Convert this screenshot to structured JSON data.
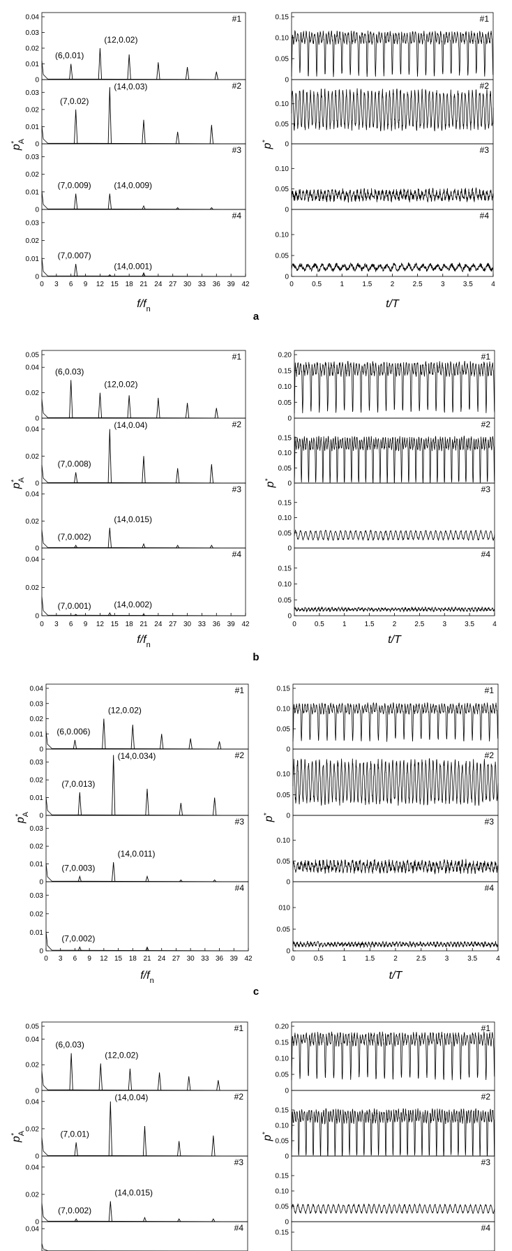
{
  "figure": {
    "panel_letters": [
      "a",
      "b",
      "c"
    ],
    "freq_xlabel": {
      "main": "f/f",
      "sub": "n"
    },
    "time_xlabel": "t/T",
    "freq_ylabel": {
      "main": "p",
      "sup": "*",
      "sub": "A"
    },
    "time_ylabel": {
      "main": "p",
      "sup": "*"
    }
  },
  "chart_data": [
    {
      "type": "line",
      "panel": "a",
      "side": "spectrum",
      "x_ticks": [
        "0",
        "3",
        "6",
        "9",
        "12",
        "15",
        "18",
        "21",
        "24",
        "27",
        "30",
        "33",
        "36",
        "39",
        "42"
      ],
      "xlim": [
        0,
        42
      ],
      "subplots": [
        {
          "tag": "#1",
          "ylim": [
            0,
            0.04
          ],
          "y_ticks": [
            "0",
            "0.01",
            "0.02",
            "0.03",
            "0.04"
          ],
          "peaks": [
            {
              "f": 6,
              "a": 0.01
            },
            {
              "f": 12,
              "a": 0.02
            },
            {
              "f": 18,
              "a": 0.016
            },
            {
              "f": 24,
              "a": 0.011
            },
            {
              "f": 30,
              "a": 0.008
            },
            {
              "f": 36,
              "a": 0.005
            }
          ],
          "annotations": [
            "(6,0.01)",
            "(12,0.02)"
          ]
        },
        {
          "tag": "#2",
          "ylim": [
            0,
            0.035
          ],
          "y_ticks": [
            "0",
            "0.01",
            "0.02",
            "0.03"
          ],
          "peaks": [
            {
              "f": 7,
              "a": 0.02
            },
            {
              "f": 14,
              "a": 0.033
            },
            {
              "f": 21,
              "a": 0.014
            },
            {
              "f": 28,
              "a": 0.007
            },
            {
              "f": 35,
              "a": 0.011
            }
          ],
          "annotations": [
            "(7,0.02)",
            "(14,0.03)"
          ]
        },
        {
          "tag": "#3",
          "ylim": [
            0,
            0.035
          ],
          "y_ticks": [
            "0",
            "0.01",
            "0.02",
            "0.03"
          ],
          "peaks": [
            {
              "f": 7,
              "a": 0.009
            },
            {
              "f": 14,
              "a": 0.009
            },
            {
              "f": 21,
              "a": 0.002
            },
            {
              "f": 28,
              "a": 0.001
            },
            {
              "f": 35,
              "a": 0.001
            }
          ],
          "annotations": [
            "(7,0.009)",
            "(14,0.009)"
          ]
        },
        {
          "tag": "#4",
          "ylim": [
            0,
            0.035
          ],
          "y_ticks": [
            "0",
            "0.01",
            "0.02",
            "0.03"
          ],
          "peaks": [
            {
              "f": 7,
              "a": 0.007
            },
            {
              "f": 14,
              "a": 0.001
            },
            {
              "f": 21,
              "a": 0.002
            }
          ],
          "annotations": [
            "(7,0.007)",
            "(14,0.001)"
          ]
        }
      ]
    },
    {
      "type": "line",
      "panel": "a",
      "side": "time",
      "x_ticks": [
        "0",
        "0.5",
        "1",
        "1.5",
        "2",
        "2.5",
        "3",
        "3.5",
        "4"
      ],
      "xlim": [
        0,
        4
      ],
      "subplots": [
        {
          "tag": "#1",
          "ylim": [
            0,
            0.15
          ],
          "y_ticks": [
            "0",
            "0.05",
            "0.10",
            "0.15"
          ],
          "signal": {
            "mean": 0.1,
            "amp": 0.04,
            "dips": 24,
            "kind": "dip"
          }
        },
        {
          "tag": "#2",
          "ylim": [
            0,
            0.15
          ],
          "y_ticks": [
            "0",
            "0.05",
            "0.10"
          ],
          "signal": {
            "mean": 0.085,
            "amp": 0.045,
            "dips": 56,
            "kind": "osc"
          }
        },
        {
          "tag": "#3",
          "ylim": [
            0,
            0.15
          ],
          "y_ticks": [
            "0",
            "0.05",
            "0.10"
          ],
          "signal": {
            "mean": 0.035,
            "amp": 0.012,
            "dips": 56,
            "kind": "noise"
          }
        },
        {
          "tag": "#4",
          "ylim": [
            0,
            0.15
          ],
          "y_ticks": [
            "0",
            "0.05",
            "0.10"
          ],
          "signal": {
            "mean": 0.022,
            "amp": 0.007,
            "dips": 28,
            "kind": "noise"
          }
        }
      ]
    },
    {
      "type": "line",
      "panel": "b",
      "side": "spectrum",
      "x_ticks": [
        "0",
        "3",
        "6",
        "9",
        "12",
        "15",
        "18",
        "21",
        "24",
        "27",
        "30",
        "33",
        "36",
        "39",
        "42"
      ],
      "xlim": [
        0,
        42
      ],
      "subplots": [
        {
          "tag": "#1",
          "ylim": [
            0,
            0.05
          ],
          "y_ticks": [
            "0",
            "0.02",
            "0.04",
            "0.05"
          ],
          "peaks": [
            {
              "f": 6,
              "a": 0.03
            },
            {
              "f": 12,
              "a": 0.02
            },
            {
              "f": 18,
              "a": 0.018
            },
            {
              "f": 24,
              "a": 0.016
            },
            {
              "f": 30,
              "a": 0.012
            },
            {
              "f": 36,
              "a": 0.008
            }
          ],
          "annotations": [
            "(6,0.03)",
            "(12,0.02)"
          ]
        },
        {
          "tag": "#2",
          "ylim": [
            0,
            0.045
          ],
          "y_ticks": [
            "0",
            "0.02",
            "0.04"
          ],
          "peaks": [
            {
              "f": 7,
              "a": 0.008
            },
            {
              "f": 14,
              "a": 0.04
            },
            {
              "f": 21,
              "a": 0.02
            },
            {
              "f": 28,
              "a": 0.011
            },
            {
              "f": 35,
              "a": 0.014
            }
          ],
          "annotations": [
            "(7,0.008)",
            "(14,0.04)"
          ]
        },
        {
          "tag": "#3",
          "ylim": [
            0,
            0.045
          ],
          "y_ticks": [
            "0",
            "0.02",
            "0.04"
          ],
          "peaks": [
            {
              "f": 7,
              "a": 0.002
            },
            {
              "f": 14,
              "a": 0.015
            },
            {
              "f": 21,
              "a": 0.003
            },
            {
              "f": 28,
              "a": 0.002
            },
            {
              "f": 35,
              "a": 0.002
            }
          ],
          "annotations": [
            "(7,0.002)",
            "(14,0.015)"
          ]
        },
        {
          "tag": "#4",
          "ylim": [
            0,
            0.045
          ],
          "y_ticks": [
            "0",
            "0.02",
            "0.04"
          ],
          "peaks": [
            {
              "f": 7,
              "a": 0.001
            },
            {
              "f": 14,
              "a": 0.002
            },
            {
              "f": 21,
              "a": 0.001
            }
          ],
          "annotations": [
            "(7,0.001)",
            "(14,0.002)"
          ]
        }
      ]
    },
    {
      "type": "line",
      "panel": "b",
      "side": "time",
      "x_ticks": [
        "0",
        "0.5",
        "1",
        "1.5",
        "2",
        "2.5",
        "3",
        "3.5",
        "4"
      ],
      "xlim": [
        0,
        4
      ],
      "subplots": [
        {
          "tag": "#1",
          "ylim": [
            0,
            0.2
          ],
          "y_ticks": [
            "0",
            "0.05",
            "0.10",
            "0.15",
            "0.20"
          ],
          "signal": {
            "mean": 0.155,
            "amp": 0.06,
            "dips": 24,
            "kind": "dip"
          }
        },
        {
          "tag": "#2",
          "ylim": [
            0,
            0.2
          ],
          "y_ticks": [
            "0",
            "0.05",
            "0.10",
            "0.15"
          ],
          "signal": {
            "mean": 0.13,
            "amp": 0.06,
            "dips": 28,
            "kind": "dip"
          }
        },
        {
          "tag": "#3",
          "ylim": [
            0,
            0.2
          ],
          "y_ticks": [
            "0",
            "0.05",
            "0.10",
            "0.15"
          ],
          "signal": {
            "mean": 0.042,
            "amp": 0.014,
            "dips": 40,
            "kind": "osc"
          }
        },
        {
          "tag": "#4",
          "ylim": [
            0,
            0.2
          ],
          "y_ticks": [
            "0",
            "0.05",
            "0.10",
            "0.15"
          ],
          "signal": {
            "mean": 0.02,
            "amp": 0.005,
            "dips": 60,
            "kind": "noise"
          }
        }
      ]
    },
    {
      "type": "line",
      "panel": "c",
      "side": "spectrum",
      "x_ticks": [
        "0",
        "3",
        "6",
        "9",
        "12",
        "15",
        "18",
        "21",
        "24",
        "27",
        "30",
        "33",
        "36",
        "39",
        "42"
      ],
      "xlim": [
        0,
        42
      ],
      "subplots": [
        {
          "tag": "#1",
          "ylim": [
            0,
            0.04
          ],
          "y_ticks": [
            "0",
            "0.01",
            "0.02",
            "0.03",
            "0.04"
          ],
          "peaks": [
            {
              "f": 6,
              "a": 0.006
            },
            {
              "f": 12,
              "a": 0.02
            },
            {
              "f": 18,
              "a": 0.016
            },
            {
              "f": 24,
              "a": 0.01
            },
            {
              "f": 30,
              "a": 0.007
            },
            {
              "f": 36,
              "a": 0.005
            }
          ],
          "annotations": [
            "(6,0.006)",
            "(12,0.02)"
          ]
        },
        {
          "tag": "#2",
          "ylim": [
            0,
            0.035
          ],
          "y_ticks": [
            "0",
            "0.01",
            "0.02",
            "0.03"
          ],
          "peaks": [
            {
              "f": 7,
              "a": 0.013
            },
            {
              "f": 14,
              "a": 0.034
            },
            {
              "f": 21,
              "a": 0.015
            },
            {
              "f": 28,
              "a": 0.007
            },
            {
              "f": 35,
              "a": 0.01
            }
          ],
          "annotations": [
            "(7,0.013)",
            "(14,0.034)"
          ]
        },
        {
          "tag": "#3",
          "ylim": [
            0,
            0.035
          ],
          "y_ticks": [
            "0",
            "0.01",
            "0.02",
            "0.03"
          ],
          "peaks": [
            {
              "f": 7,
              "a": 0.003
            },
            {
              "f": 14,
              "a": 0.011
            },
            {
              "f": 21,
              "a": 0.003
            },
            {
              "f": 28,
              "a": 0.001
            },
            {
              "f": 35,
              "a": 0.001
            }
          ],
          "annotations": [
            "(7,0.003)",
            "(14,0.011)"
          ]
        },
        {
          "tag": "#4",
          "ylim": [
            0,
            0.035
          ],
          "y_ticks": [
            "0",
            "0.01",
            "0.02",
            "0.03"
          ],
          "peaks": [
            {
              "f": 7,
              "a": 0.002
            },
            {
              "f": 21,
              "a": 0.002
            }
          ],
          "annotations": [
            "(7,0.002)"
          ]
        }
      ]
    },
    {
      "type": "line",
      "panel": "c",
      "side": "time",
      "x_ticks": [
        "0",
        "0.5",
        "1",
        "1.5",
        "2",
        "2.5",
        "3",
        "3.5",
        "4"
      ],
      "xlim": [
        0,
        4
      ],
      "subplots": [
        {
          "tag": "#1",
          "ylim": [
            0,
            0.15
          ],
          "y_ticks": [
            "0",
            "0.05",
            "0.10",
            "0.15"
          ],
          "signal": {
            "mean": 0.1,
            "amp": 0.035,
            "dips": 24,
            "kind": "dip"
          }
        },
        {
          "tag": "#2",
          "ylim": [
            0,
            0.15
          ],
          "y_ticks": [
            "0",
            "0.05",
            "0.10"
          ],
          "signal": {
            "mean": 0.08,
            "amp": 0.048,
            "dips": 56,
            "kind": "osc"
          }
        },
        {
          "tag": "#3",
          "ylim": [
            0,
            0.15
          ],
          "y_ticks": [
            "0",
            "0.05",
            "0.10"
          ],
          "signal": {
            "mean": 0.037,
            "amp": 0.012,
            "dips": 56,
            "kind": "noise"
          }
        },
        {
          "tag": "#4",
          "ylim": [
            0,
            0.15
          ],
          "y_ticks": [
            "0",
            "0.05",
            "010"
          ],
          "signal": {
            "mean": 0.015,
            "amp": 0.005,
            "dips": 60,
            "kind": "noise"
          }
        }
      ]
    },
    {
      "type": "line",
      "panel": "d",
      "side": "spectrum",
      "x_ticks": [],
      "xlim": [
        0,
        42
      ],
      "subplots": [
        {
          "tag": "#1",
          "ylim": [
            0,
            0.05
          ],
          "y_ticks": [
            "0",
            "0.02",
            "0.04",
            "0.05"
          ],
          "peaks": [
            {
              "f": 6,
              "a": 0.029
            },
            {
              "f": 12,
              "a": 0.021
            },
            {
              "f": 18,
              "a": 0.017
            },
            {
              "f": 24,
              "a": 0.014
            },
            {
              "f": 30,
              "a": 0.011
            },
            {
              "f": 36,
              "a": 0.008
            }
          ],
          "annotations": [
            "(6,0.03)",
            "(12,0.02)"
          ]
        },
        {
          "tag": "#2",
          "ylim": [
            0,
            0.045
          ],
          "y_ticks": [
            "0",
            "0.02",
            "0.04"
          ],
          "peaks": [
            {
              "f": 7,
              "a": 0.01
            },
            {
              "f": 14,
              "a": 0.04
            },
            {
              "f": 21,
              "a": 0.022
            },
            {
              "f": 28,
              "a": 0.011
            },
            {
              "f": 35,
              "a": 0.015
            }
          ],
          "annotations": [
            "(7,0.01)",
            "(14,0.04)"
          ]
        },
        {
          "tag": "#3",
          "ylim": [
            0,
            0.045
          ],
          "y_ticks": [
            "0",
            "0.02",
            "0.04"
          ],
          "peaks": [
            {
              "f": 7,
              "a": 0.002
            },
            {
              "f": 14,
              "a": 0.015
            },
            {
              "f": 21,
              "a": 0.003
            },
            {
              "f": 28,
              "a": 0.002
            },
            {
              "f": 35,
              "a": 0.002
            }
          ],
          "annotations": [
            "(7,0.002)",
            "(14,0.015)"
          ]
        },
        {
          "tag": "#4",
          "ylim": [
            0,
            0.045
          ],
          "y_ticks": [
            "0.04"
          ],
          "peaks": [],
          "annotations": []
        }
      ]
    },
    {
      "type": "line",
      "panel": "d",
      "side": "time",
      "x_ticks": [],
      "xlim": [
        0,
        4
      ],
      "subplots": [
        {
          "tag": "#1",
          "ylim": [
            0,
            0.2
          ],
          "y_ticks": [
            "0",
            "0.05",
            "0.10",
            "0.15",
            "0.20"
          ],
          "signal": {
            "mean": 0.16,
            "amp": 0.055,
            "dips": 24,
            "kind": "dip"
          }
        },
        {
          "tag": "#2",
          "ylim": [
            0,
            0.2
          ],
          "y_ticks": [
            "0",
            "0.05",
            "0.10",
            "0.15"
          ],
          "signal": {
            "mean": 0.13,
            "amp": 0.06,
            "dips": 28,
            "kind": "dip"
          }
        },
        {
          "tag": "#3",
          "ylim": [
            0,
            0.2
          ],
          "y_ticks": [
            "0",
            "0.05",
            "0.10",
            "0.15"
          ],
          "signal": {
            "mean": 0.042,
            "amp": 0.013,
            "dips": 40,
            "kind": "osc"
          }
        },
        {
          "tag": "#4",
          "ylim": [
            0,
            0.2
          ],
          "y_ticks": [
            "0.15"
          ],
          "signal": null
        }
      ]
    }
  ]
}
